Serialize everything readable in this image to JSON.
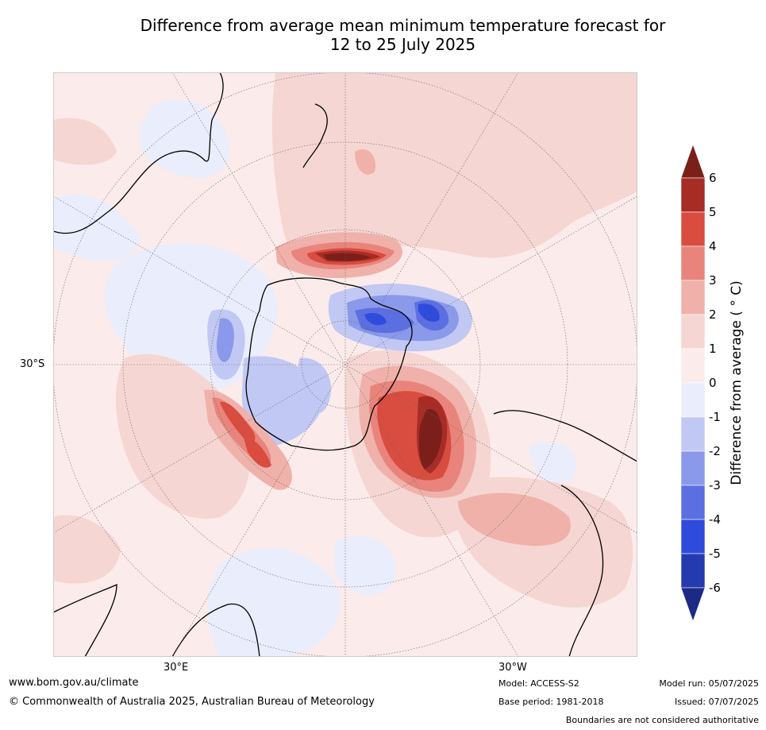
{
  "title": {
    "line1": "Difference from average mean minimum temperature forecast for",
    "line2": "12 to 25 July 2025"
  },
  "map": {
    "projection": "south polar stereographic",
    "labels": {
      "lat_left": "30°S",
      "lon_bottom_left": "30°E",
      "lon_bottom_right": "30°W"
    }
  },
  "colorbar": {
    "label": "Difference from average ( ° C)",
    "ticks": [
      "6",
      "5",
      "4",
      "3",
      "2",
      "1",
      "0",
      "-1",
      "-2",
      "-3",
      "-4",
      "-5",
      "-6"
    ],
    "colors_top_to_bottom": [
      "#7a1f1a",
      "#a82c26",
      "#d94c40",
      "#e9847c",
      "#f0b1ab",
      "#f5d6d3",
      "#fbebea",
      "#eaedfb",
      "#c2c8f4",
      "#8a99ea",
      "#5b6fe0",
      "#2f4bdc",
      "#263ab0",
      "#1d2a85"
    ]
  },
  "footer": {
    "url": "www.bom.gov.au/climate",
    "copyright": "© Commonwealth of Australia 2025, Australian Bureau of Meteorology",
    "model": "Model: ACCESS-S2",
    "base_period": "Base period: 1981-2018",
    "model_run": "Model run: 05/07/2025",
    "issued": "Issued: 07/07/2025",
    "disclaimer": "Boundaries are not considered authoritative"
  }
}
